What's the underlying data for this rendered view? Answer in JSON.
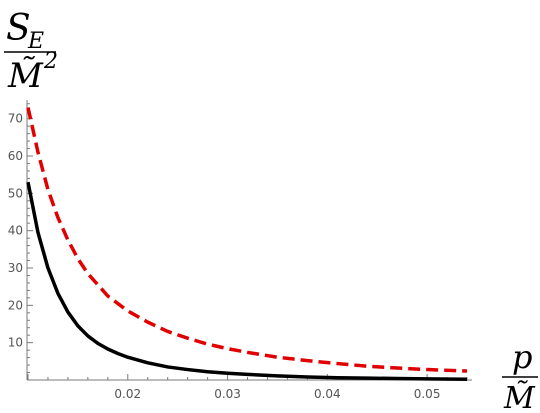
{
  "chart_data": {
    "type": "line",
    "title": "",
    "ylabel": {
      "numerator": "S",
      "numerator_sub": "E",
      "denominator": "M̃",
      "denominator_sup": "2"
    },
    "xlabel": {
      "numerator": "p",
      "denominator": "M̃"
    },
    "xlim": [
      0.0099,
      0.0545
    ],
    "ylim": [
      0,
      75
    ],
    "x_ticks": [
      0.02,
      0.03,
      0.04,
      0.05
    ],
    "x_tick_labels": [
      "0.02",
      "0.03",
      "0.04",
      "0.05"
    ],
    "y_ticks": [
      10,
      20,
      30,
      40,
      50,
      60,
      70
    ],
    "y_tick_labels": [
      "10",
      "20",
      "30",
      "40",
      "50",
      "60",
      "70"
    ],
    "grid": false,
    "legend": "none",
    "series": [
      {
        "style": "solid",
        "color": "#000000",
        "x": [
          0.01,
          0.011,
          0.012,
          0.013,
          0.014,
          0.015,
          0.016,
          0.017,
          0.018,
          0.019,
          0.02,
          0.022,
          0.024,
          0.026,
          0.028,
          0.03,
          0.032,
          0.035,
          0.038,
          0.041,
          0.044,
          0.047,
          0.05,
          0.054
        ],
        "y": [
          53.0,
          39.5,
          30.0,
          23.2,
          18.2,
          14.5,
          11.8,
          9.8,
          8.3,
          7.1,
          6.1,
          4.6,
          3.5,
          2.8,
          2.2,
          1.8,
          1.5,
          1.1,
          0.8,
          0.6,
          0.5,
          0.4,
          0.3,
          0.2
        ]
      },
      {
        "style": "dashed",
        "color": "#e00000",
        "x": [
          0.01,
          0.011,
          0.012,
          0.013,
          0.014,
          0.015,
          0.016,
          0.017,
          0.018,
          0.019,
          0.02,
          0.022,
          0.024,
          0.026,
          0.028,
          0.03,
          0.032,
          0.035,
          0.038,
          0.041,
          0.044,
          0.047,
          0.05,
          0.054
        ],
        "y": [
          73.0,
          61.0,
          51.0,
          43.5,
          37.5,
          32.5,
          28.5,
          25.5,
          22.5,
          20.5,
          18.5,
          15.5,
          13.0,
          11.2,
          9.6,
          8.4,
          7.4,
          6.1,
          5.2,
          4.4,
          3.7,
          3.2,
          2.8,
          2.4
        ]
      }
    ]
  }
}
